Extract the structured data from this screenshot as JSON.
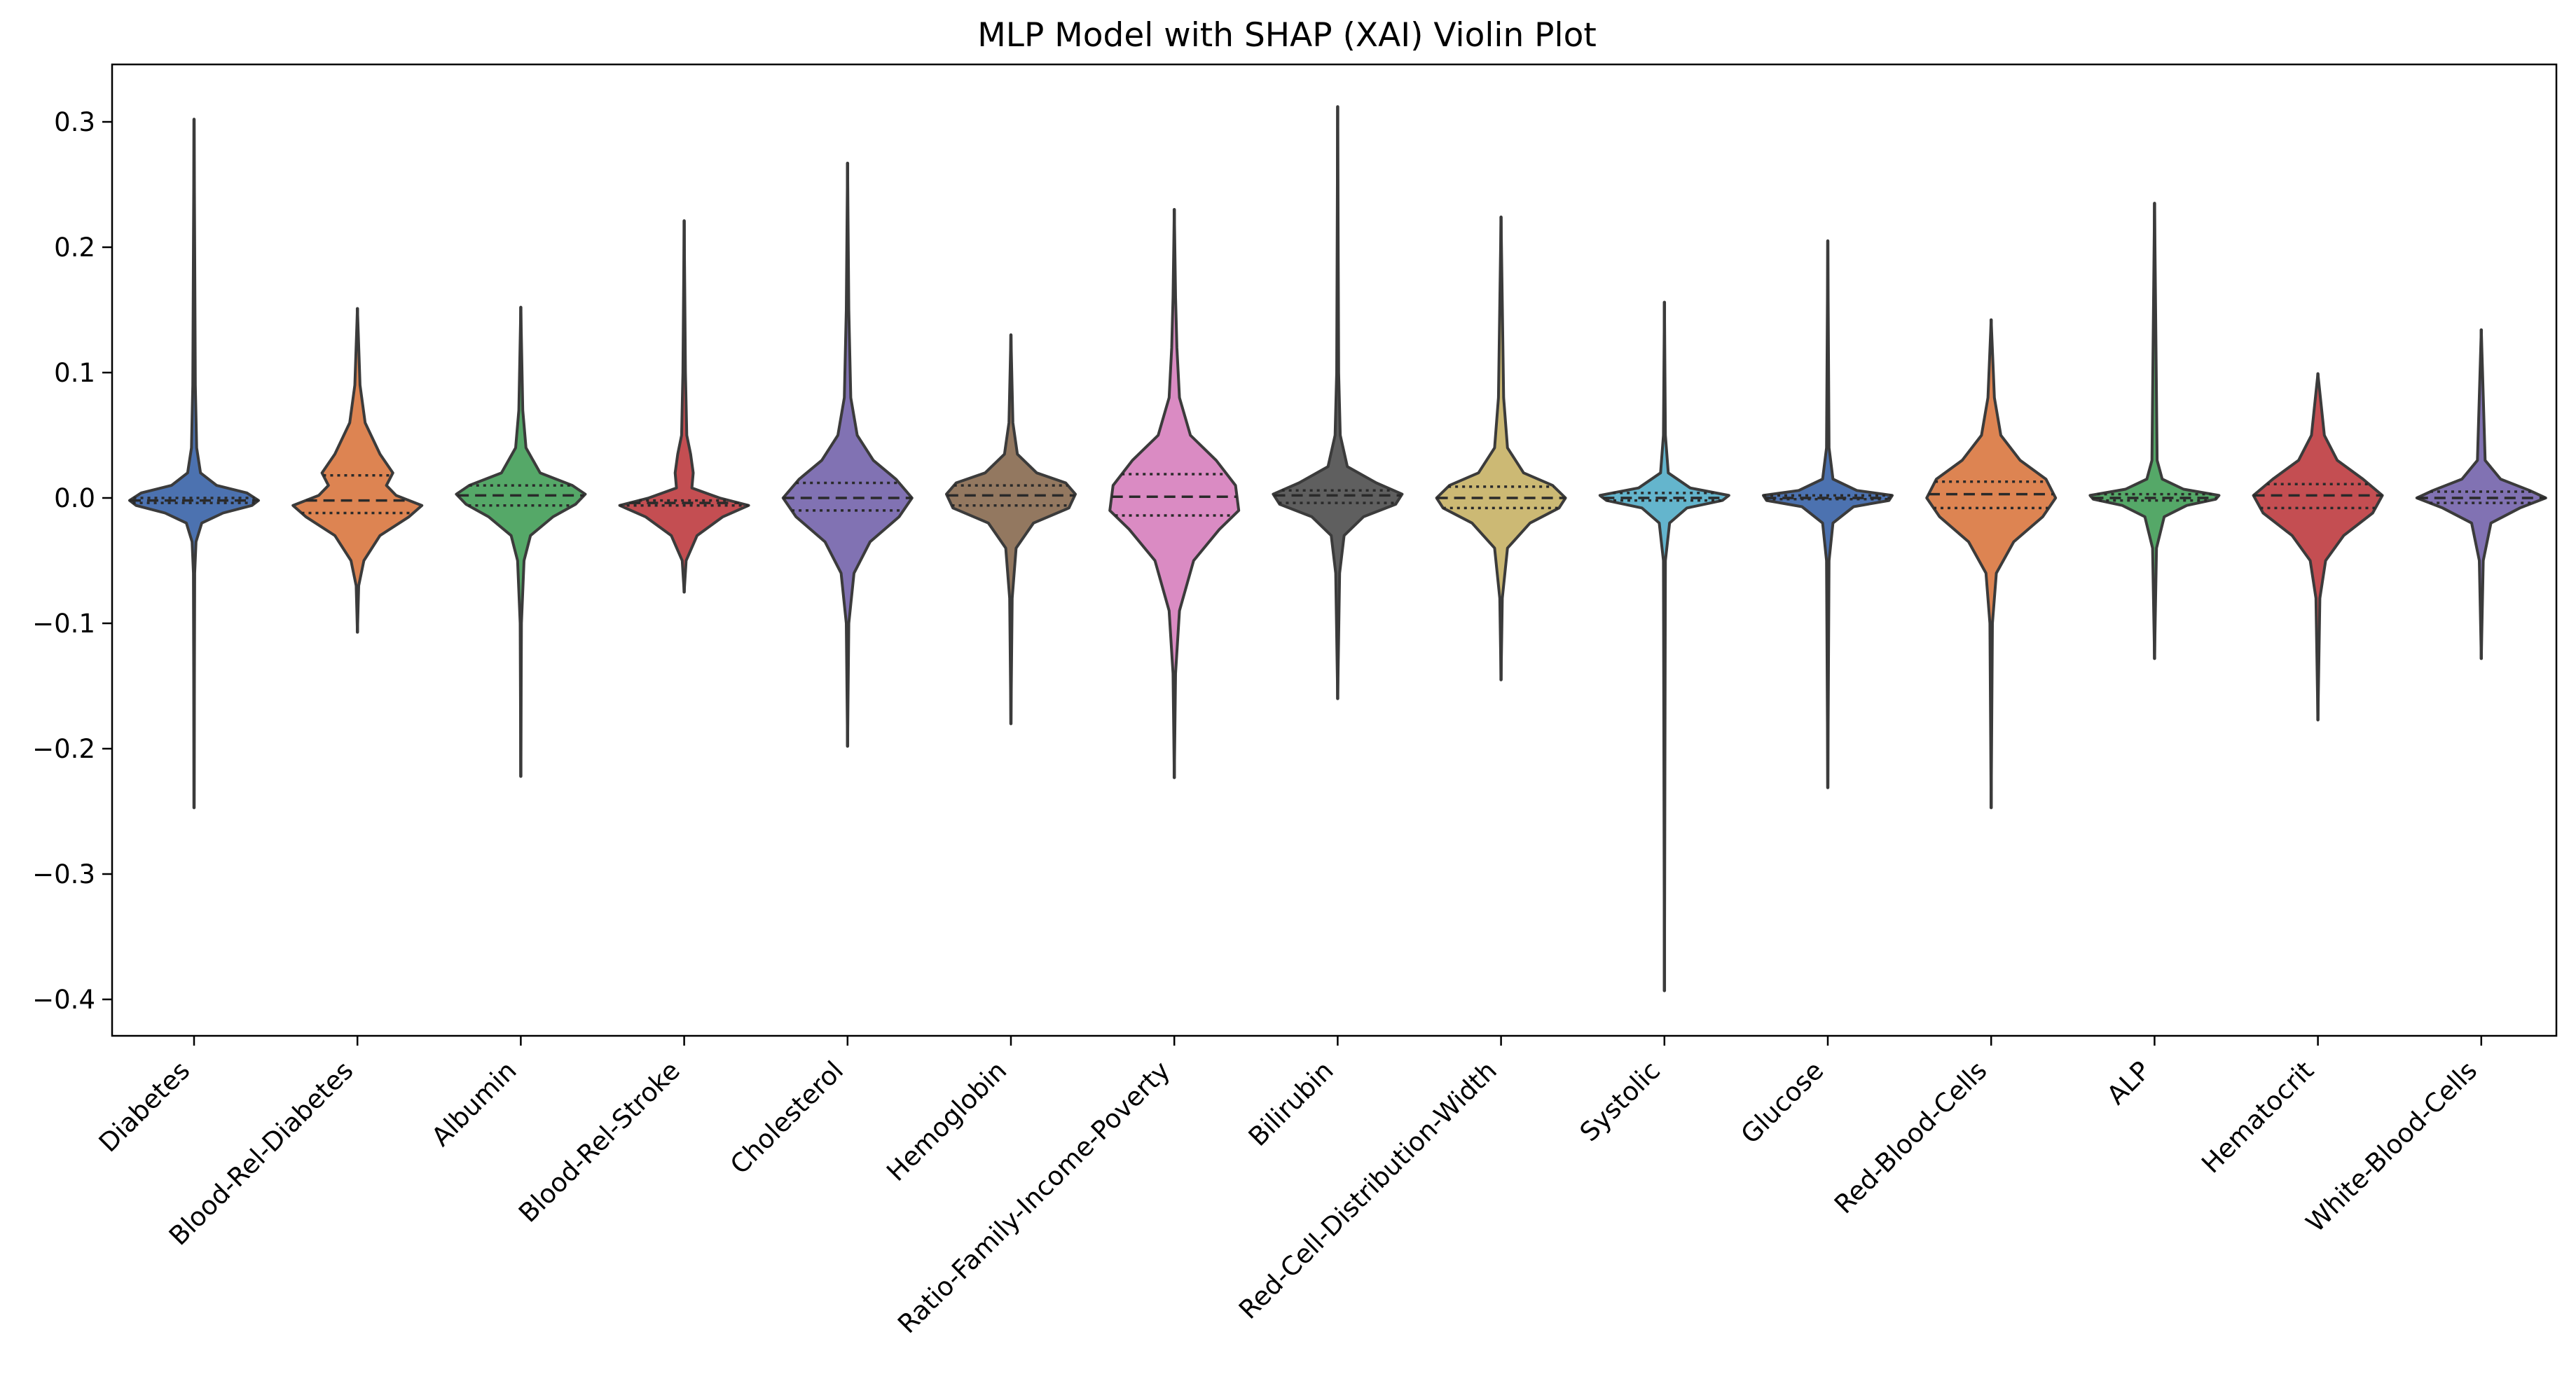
{
  "chart_data": {
    "type": "violin",
    "title": "MLP Model with SHAP (XAI) Violin Plot",
    "xlabel": "",
    "ylabel": "",
    "ylim": [
      -0.43,
      0.345
    ],
    "yticks": [
      0.3,
      0.2,
      0.1,
      0.0,
      -0.1,
      -0.2,
      -0.3,
      -0.4
    ],
    "ytick_labels": [
      "0.3",
      "0.2",
      "0.1",
      "0.0",
      "−0.1",
      "−0.2",
      "−0.3",
      "−0.4"
    ],
    "grid": false,
    "legend": "none",
    "inner": "quartile",
    "categories": [
      "Diabetes",
      "Blood-Rel-Diabetes",
      "Albumin",
      "Blood-Rel-Stroke",
      "Cholesterol",
      "Hemoglobin",
      "Ratio-Family-Income-Poverty",
      "Bilirubin",
      "Red-Cell-Distribution-Width",
      "Systolic",
      "Glucose",
      "Red-Blood-Cells",
      "ALP",
      "Hematocrit",
      "White-Blood-Cells"
    ],
    "series": [
      {
        "category": "Diabetes",
        "color": "#4c72b0",
        "min": -0.247,
        "max": 0.302,
        "q1": -0.004,
        "median": -0.002,
        "q3": 0.0,
        "profile": [
          [
            -0.247,
            0
          ],
          [
            -0.06,
            0.01
          ],
          [
            -0.035,
            0.03
          ],
          [
            -0.02,
            0.12
          ],
          [
            -0.012,
            0.45
          ],
          [
            -0.006,
            0.9
          ],
          [
            -0.002,
            1.0
          ],
          [
            0.004,
            0.82
          ],
          [
            0.01,
            0.35
          ],
          [
            0.02,
            0.1
          ],
          [
            0.04,
            0.04
          ],
          [
            0.09,
            0.02
          ],
          [
            0.2,
            0.01
          ],
          [
            0.302,
            0
          ]
        ]
      },
      {
        "category": "Blood-Rel-Diabetes",
        "color": "#dd8452",
        "min": -0.107,
        "max": 0.151,
        "q1": -0.012,
        "median": -0.002,
        "q3": 0.018,
        "profile": [
          [
            -0.107,
            0
          ],
          [
            -0.07,
            0.02
          ],
          [
            -0.05,
            0.1
          ],
          [
            -0.03,
            0.35
          ],
          [
            -0.015,
            0.8
          ],
          [
            -0.006,
            1.0
          ],
          [
            0.002,
            0.6
          ],
          [
            0.01,
            0.45
          ],
          [
            0.02,
            0.55
          ],
          [
            0.035,
            0.35
          ],
          [
            0.06,
            0.12
          ],
          [
            0.09,
            0.04
          ],
          [
            0.151,
            0
          ]
        ]
      },
      {
        "category": "Albumin",
        "color": "#55a868",
        "min": -0.222,
        "max": 0.152,
        "q1": -0.006,
        "median": 0.002,
        "q3": 0.01,
        "profile": [
          [
            -0.222,
            0
          ],
          [
            -0.1,
            0.01
          ],
          [
            -0.05,
            0.05
          ],
          [
            -0.03,
            0.15
          ],
          [
            -0.015,
            0.5
          ],
          [
            -0.005,
            0.85
          ],
          [
            0.003,
            1.0
          ],
          [
            0.01,
            0.8
          ],
          [
            0.02,
            0.3
          ],
          [
            0.04,
            0.08
          ],
          [
            0.07,
            0.03
          ],
          [
            0.152,
            0
          ]
        ]
      },
      {
        "category": "Blood-Rel-Stroke",
        "color": "#c44e52",
        "min": -0.075,
        "max": 0.221,
        "q1": -0.006,
        "median": -0.004,
        "q3": -0.002,
        "profile": [
          [
            -0.075,
            0
          ],
          [
            -0.05,
            0.03
          ],
          [
            -0.03,
            0.2
          ],
          [
            -0.015,
            0.6
          ],
          [
            -0.006,
            1.0
          ],
          [
            0.0,
            0.55
          ],
          [
            0.008,
            0.12
          ],
          [
            0.02,
            0.14
          ],
          [
            0.035,
            0.1
          ],
          [
            0.05,
            0.04
          ],
          [
            0.1,
            0.02
          ],
          [
            0.221,
            0
          ]
        ]
      },
      {
        "category": "Cholesterol",
        "color": "#8172b3",
        "min": -0.198,
        "max": 0.267,
        "q1": -0.01,
        "median": 0.0,
        "q3": 0.012,
        "profile": [
          [
            -0.198,
            0
          ],
          [
            -0.1,
            0.02
          ],
          [
            -0.06,
            0.1
          ],
          [
            -0.035,
            0.35
          ],
          [
            -0.015,
            0.8
          ],
          [
            0.0,
            1.0
          ],
          [
            0.015,
            0.75
          ],
          [
            0.03,
            0.4
          ],
          [
            0.05,
            0.15
          ],
          [
            0.08,
            0.05
          ],
          [
            0.15,
            0.02
          ],
          [
            0.267,
            0
          ]
        ]
      },
      {
        "category": "Hemoglobin",
        "color": "#937860",
        "min": -0.18,
        "max": 0.13,
        "q1": -0.006,
        "median": 0.002,
        "q3": 0.01,
        "profile": [
          [
            -0.18,
            0
          ],
          [
            -0.08,
            0.02
          ],
          [
            -0.04,
            0.08
          ],
          [
            -0.02,
            0.35
          ],
          [
            -0.008,
            0.9
          ],
          [
            0.003,
            1.0
          ],
          [
            0.012,
            0.85
          ],
          [
            0.02,
            0.4
          ],
          [
            0.035,
            0.1
          ],
          [
            0.06,
            0.03
          ],
          [
            0.13,
            0
          ]
        ]
      },
      {
        "category": "Ratio-Family-Income-Poverty",
        "color": "#da8bc3",
        "min": -0.223,
        "max": 0.23,
        "q1": -0.014,
        "median": 0.001,
        "q3": 0.019,
        "profile": [
          [
            -0.223,
            0
          ],
          [
            -0.14,
            0.02
          ],
          [
            -0.09,
            0.08
          ],
          [
            -0.05,
            0.3
          ],
          [
            -0.025,
            0.7
          ],
          [
            -0.01,
            1.0
          ],
          [
            0.01,
            0.95
          ],
          [
            0.03,
            0.65
          ],
          [
            0.05,
            0.25
          ],
          [
            0.08,
            0.08
          ],
          [
            0.12,
            0.04
          ],
          [
            0.16,
            0.02
          ],
          [
            0.23,
            0
          ]
        ]
      },
      {
        "category": "Bilirubin",
        "color": "#5f5f5f",
        "min": -0.16,
        "max": 0.312,
        "q1": -0.004,
        "median": 0.002,
        "q3": 0.006,
        "profile": [
          [
            -0.16,
            0
          ],
          [
            -0.06,
            0.03
          ],
          [
            -0.03,
            0.1
          ],
          [
            -0.015,
            0.4
          ],
          [
            -0.005,
            0.9
          ],
          [
            0.003,
            1.0
          ],
          [
            0.012,
            0.6
          ],
          [
            0.025,
            0.15
          ],
          [
            0.05,
            0.04
          ],
          [
            0.1,
            0.015
          ],
          [
            0.312,
            0
          ]
        ]
      },
      {
        "category": "Red-Cell-Distribution-Width",
        "color": "#ccb974",
        "min": -0.145,
        "max": 0.224,
        "q1": -0.008,
        "median": 0.0,
        "q3": 0.009,
        "profile": [
          [
            -0.145,
            0
          ],
          [
            -0.08,
            0.02
          ],
          [
            -0.04,
            0.1
          ],
          [
            -0.02,
            0.45
          ],
          [
            -0.008,
            0.9
          ],
          [
            0.0,
            1.0
          ],
          [
            0.01,
            0.8
          ],
          [
            0.02,
            0.35
          ],
          [
            0.04,
            0.1
          ],
          [
            0.08,
            0.04
          ],
          [
            0.224,
            0
          ]
        ]
      },
      {
        "category": "Systolic",
        "color": "#64b5cd",
        "min": -0.393,
        "max": 0.156,
        "q1": -0.002,
        "median": 0.0,
        "q3": 0.004,
        "profile": [
          [
            -0.393,
            0
          ],
          [
            -0.05,
            0.015
          ],
          [
            -0.02,
            0.08
          ],
          [
            -0.008,
            0.35
          ],
          [
            -0.002,
            0.9
          ],
          [
            0.002,
            1.0
          ],
          [
            0.008,
            0.4
          ],
          [
            0.02,
            0.06
          ],
          [
            0.05,
            0.015
          ],
          [
            0.156,
            0
          ]
        ]
      },
      {
        "category": "Glucose",
        "color": "#4c72b0",
        "min": -0.231,
        "max": 0.205,
        "q1": -0.001,
        "median": 0.0,
        "q3": 0.002,
        "profile": [
          [
            -0.231,
            0
          ],
          [
            -0.05,
            0.02
          ],
          [
            -0.02,
            0.08
          ],
          [
            -0.007,
            0.4
          ],
          [
            -0.002,
            0.95
          ],
          [
            0.002,
            1.0
          ],
          [
            0.006,
            0.45
          ],
          [
            0.015,
            0.08
          ],
          [
            0.04,
            0.02
          ],
          [
            0.205,
            0
          ]
        ]
      },
      {
        "category": "Red-Blood-Cells",
        "color": "#dd8452",
        "min": -0.247,
        "max": 0.142,
        "q1": -0.008,
        "median": 0.003,
        "q3": 0.013,
        "profile": [
          [
            -0.247,
            0
          ],
          [
            -0.1,
            0.02
          ],
          [
            -0.06,
            0.08
          ],
          [
            -0.035,
            0.35
          ],
          [
            -0.015,
            0.8
          ],
          [
            0.0,
            1.0
          ],
          [
            0.015,
            0.85
          ],
          [
            0.03,
            0.45
          ],
          [
            0.05,
            0.15
          ],
          [
            0.08,
            0.05
          ],
          [
            0.142,
            0
          ]
        ]
      },
      {
        "category": "ALP",
        "color": "#55a868",
        "min": -0.128,
        "max": 0.235,
        "q1": -0.002,
        "median": 0.0,
        "q3": 0.003,
        "profile": [
          [
            -0.128,
            0
          ],
          [
            -0.04,
            0.03
          ],
          [
            -0.015,
            0.15
          ],
          [
            -0.006,
            0.5
          ],
          [
            -0.001,
            0.95
          ],
          [
            0.002,
            1.0
          ],
          [
            0.007,
            0.45
          ],
          [
            0.015,
            0.12
          ],
          [
            0.03,
            0.04
          ],
          [
            0.235,
            0
          ]
        ]
      },
      {
        "category": "Hematocrit",
        "color": "#c44e52",
        "min": -0.177,
        "max": 0.099,
        "q1": -0.008,
        "median": 0.002,
        "q3": 0.011,
        "profile": [
          [
            -0.177,
            0
          ],
          [
            -0.08,
            0.03
          ],
          [
            -0.05,
            0.12
          ],
          [
            -0.03,
            0.4
          ],
          [
            -0.012,
            0.85
          ],
          [
            0.002,
            1.0
          ],
          [
            0.015,
            0.7
          ],
          [
            0.03,
            0.3
          ],
          [
            0.05,
            0.1
          ],
          [
            0.099,
            0
          ]
        ]
      },
      {
        "category": "White-Blood-Cells",
        "color": "#8172b3",
        "min": -0.128,
        "max": 0.134,
        "q1": -0.004,
        "median": 0.0,
        "q3": 0.005,
        "profile": [
          [
            -0.128,
            0
          ],
          [
            -0.05,
            0.03
          ],
          [
            -0.02,
            0.15
          ],
          [
            -0.008,
            0.6
          ],
          [
            0.0,
            1.0
          ],
          [
            0.006,
            0.75
          ],
          [
            0.015,
            0.3
          ],
          [
            0.03,
            0.06
          ],
          [
            0.134,
            0
          ]
        ]
      }
    ]
  }
}
